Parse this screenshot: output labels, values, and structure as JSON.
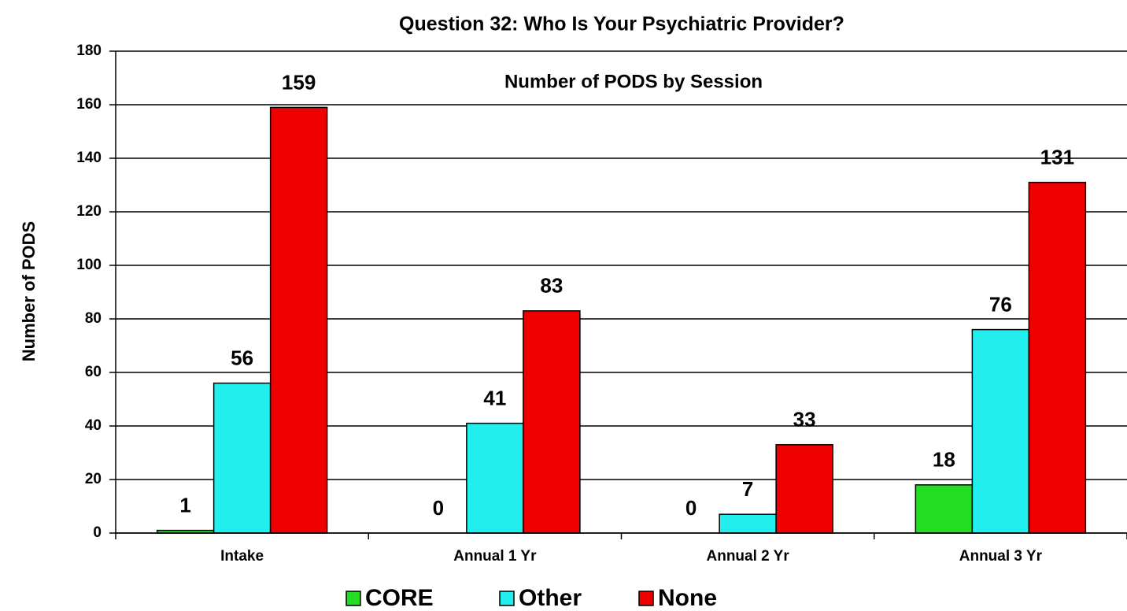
{
  "chart_data": {
    "type": "bar",
    "title": "Question 32:  Who Is Your Psychiatric Provider?",
    "subtitle": "Number of PODS by Session",
    "y_label": "Number of PODS",
    "categories": [
      "Intake",
      "Annual 1 Yr",
      "Annual 2 Yr",
      "Annual 3 Yr"
    ],
    "series": [
      {
        "name": "CORE",
        "color": "#22dd22",
        "values": [
          1,
          0,
          0,
          18
        ]
      },
      {
        "name": "Other",
        "color": "#22eeee",
        "values": [
          56,
          41,
          7,
          76
        ]
      },
      {
        "name": "None",
        "color": "#ee0000",
        "values": [
          159,
          83,
          33,
          131
        ]
      }
    ],
    "ylim": [
      0,
      180
    ],
    "yticks": [
      0,
      20,
      40,
      60,
      80,
      100,
      120,
      140,
      160,
      180
    ],
    "grid": true,
    "legend": "bottom"
  }
}
